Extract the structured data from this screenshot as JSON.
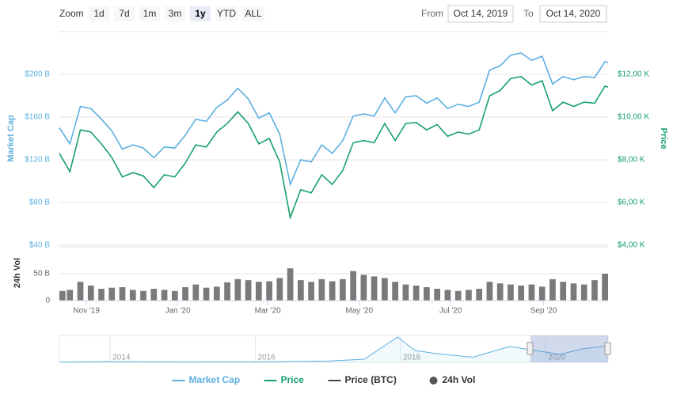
{
  "toolbar": {
    "zoom_label": "Zoom",
    "buttons": [
      "1d",
      "7d",
      "1m",
      "3m",
      "1y",
      "YTD",
      "ALL"
    ],
    "selected": "1y",
    "from_label": "From",
    "from": "Oct 14, 2019",
    "to_label": "To",
    "to": "Oct 14, 2020"
  },
  "chart_data": [
    {
      "type": "line",
      "y_label": "Market Cap",
      "y2_label": "Price",
      "x": [
        "2019-10-14",
        "2019-10-21",
        "2019-10-28",
        "2019-11-04",
        "2019-11-11",
        "2019-11-18",
        "2019-11-25",
        "2019-12-02",
        "2019-12-09",
        "2019-12-16",
        "2019-12-23",
        "2019-12-30",
        "2020-01-06",
        "2020-01-13",
        "2020-01-20",
        "2020-01-27",
        "2020-02-03",
        "2020-02-10",
        "2020-02-17",
        "2020-02-24",
        "2020-03-02",
        "2020-03-09",
        "2020-03-16",
        "2020-03-23",
        "2020-03-30",
        "2020-04-06",
        "2020-04-13",
        "2020-04-20",
        "2020-04-27",
        "2020-05-04",
        "2020-05-11",
        "2020-05-18",
        "2020-05-25",
        "2020-06-01",
        "2020-06-08",
        "2020-06-15",
        "2020-06-22",
        "2020-06-29",
        "2020-07-06",
        "2020-07-13",
        "2020-07-20",
        "2020-07-27",
        "2020-08-03",
        "2020-08-10",
        "2020-08-17",
        "2020-08-24",
        "2020-08-31",
        "2020-09-07",
        "2020-09-14",
        "2020-09-21",
        "2020-09-28",
        "2020-10-05",
        "2020-10-12",
        "2020-10-14"
      ],
      "xlim": [
        "2019-10-14",
        "2020-10-14"
      ],
      "ylim": [
        40,
        240
      ],
      "yticks": [
        {
          "value": 40,
          "label": "$40 B"
        },
        {
          "value": 80,
          "label": "$80 B"
        },
        {
          "value": 120,
          "label": "$120 B"
        },
        {
          "value": 160,
          "label": "$160 B"
        },
        {
          "value": 200,
          "label": "$200 B"
        }
      ],
      "y2lim": [
        4000,
        14000
      ],
      "y2ticks": [
        {
          "value": 4000,
          "label": "$4,00 K"
        },
        {
          "value": 6000,
          "label": "$6,00 K"
        },
        {
          "value": 8000,
          "label": "$8,00 K"
        },
        {
          "value": 10000,
          "label": "$10,00 K"
        },
        {
          "value": 12000,
          "label": "$12,00 K"
        }
      ],
      "grid": true,
      "series": [
        {
          "name": "Market Cap",
          "color": "#5cb0e0",
          "axis": "y",
          "values": [
            150,
            135,
            170,
            168,
            158,
            147,
            130,
            134,
            131,
            122,
            132,
            131,
            143,
            158,
            156,
            169,
            176,
            187,
            177,
            159,
            164,
            144,
            97,
            120,
            118,
            134,
            126,
            138,
            161,
            163,
            161,
            178,
            164,
            179,
            180,
            173,
            178,
            168,
            172,
            170,
            174,
            204,
            208,
            218,
            220,
            213,
            217,
            191,
            198,
            195,
            198,
            197,
            212,
            211
          ]
        },
        {
          "name": "Price",
          "color": "#16a06a",
          "axis": "y2",
          "values": [
            8300,
            7450,
            9400,
            9300,
            8750,
            8100,
            7200,
            7400,
            7250,
            6700,
            7300,
            7200,
            7850,
            8700,
            8600,
            9300,
            9700,
            10250,
            9700,
            8750,
            9000,
            7900,
            5300,
            6600,
            6450,
            7300,
            6850,
            7500,
            8800,
            8900,
            8800,
            9700,
            8900,
            9700,
            9750,
            9400,
            9650,
            9100,
            9300,
            9200,
            9400,
            11000,
            11250,
            11800,
            11900,
            11500,
            11700,
            10300,
            10700,
            10500,
            10700,
            10650,
            11450,
            11400
          ]
        },
        {
          "name": "Price (BTC)",
          "color": "#434348",
          "visible": false
        }
      ]
    },
    {
      "type": "bar",
      "y_label": "24h Vol",
      "x": [
        "2019-10-14",
        "2019-10-21",
        "2019-10-28",
        "2019-11-04",
        "2019-11-11",
        "2019-11-18",
        "2019-11-25",
        "2019-12-02",
        "2019-12-09",
        "2019-12-16",
        "2019-12-23",
        "2019-12-30",
        "2020-01-06",
        "2020-01-13",
        "2020-01-20",
        "2020-01-27",
        "2020-02-03",
        "2020-02-10",
        "2020-02-17",
        "2020-02-24",
        "2020-03-02",
        "2020-03-09",
        "2020-03-16",
        "2020-03-23",
        "2020-03-30",
        "2020-04-06",
        "2020-04-13",
        "2020-04-20",
        "2020-04-27",
        "2020-05-04",
        "2020-05-11",
        "2020-05-18",
        "2020-05-25",
        "2020-06-01",
        "2020-06-08",
        "2020-06-15",
        "2020-06-22",
        "2020-06-29",
        "2020-07-06",
        "2020-07-13",
        "2020-07-20",
        "2020-07-27",
        "2020-08-03",
        "2020-08-10",
        "2020-08-17",
        "2020-08-24",
        "2020-08-31",
        "2020-09-07",
        "2020-09-14",
        "2020-09-21",
        "2020-09-28",
        "2020-10-05",
        "2020-10-12",
        "2020-10-14"
      ],
      "xlim": [
        "2019-10-14",
        "2020-10-14"
      ],
      "xticks": [
        {
          "value": "2019-11-01",
          "label": "Nov '19"
        },
        {
          "value": "2020-01-01",
          "label": "Jan '20"
        },
        {
          "value": "2020-03-01",
          "label": "Mar '20"
        },
        {
          "value": "2020-05-01",
          "label": "May '20"
        },
        {
          "value": "2020-07-01",
          "label": "Jul '20"
        },
        {
          "value": "2020-09-01",
          "label": "Sep '20"
        }
      ],
      "ylim": [
        0,
        100
      ],
      "yticks": [
        0,
        {
          "value": 50,
          "label": "50 B"
        }
      ],
      "series": [
        {
          "name": "24h Vol",
          "color": "#7a7a7a",
          "values": [
            18,
            20,
            35,
            28,
            22,
            24,
            25,
            20,
            18,
            22,
            20,
            18,
            25,
            30,
            24,
            26,
            34,
            40,
            38,
            35,
            36,
            42,
            60,
            38,
            35,
            40,
            36,
            40,
            55,
            48,
            45,
            42,
            35,
            30,
            28,
            25,
            22,
            20,
            18,
            20,
            22,
            35,
            32,
            30,
            28,
            30,
            26,
            40,
            35,
            32,
            30,
            38,
            50,
            30
          ]
        }
      ]
    },
    {
      "type": "area",
      "x": [
        2013.3,
        2014,
        2015,
        2016,
        2017,
        2017.5,
        2017.96,
        2018.2,
        2018.5,
        2019,
        2019.5,
        2020,
        2020.2,
        2020.5,
        2020.86
      ],
      "values": [
        1.5,
        10,
        4,
        6,
        16,
        40,
        320,
        150,
        110,
        65,
        200,
        130,
        100,
        170,
        210
      ],
      "color": "#5cb0e0",
      "xlim": [
        2013.3,
        2020.86
      ],
      "ylim": [
        0,
        340
      ],
      "xticks": [
        2014,
        2016,
        2018,
        2020
      ],
      "selection": [
        2019.79,
        2020.86
      ]
    }
  ]
}
